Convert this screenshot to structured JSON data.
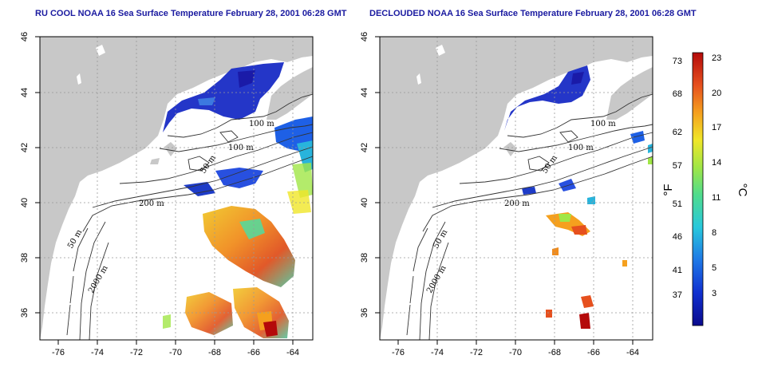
{
  "left_panel": {
    "title": "RU COOL NOAA 16 Sea Surface Temperature February 28, 2001 06:28 GMT",
    "contour_labels": [
      "100 m",
      "100 m",
      "50 m",
      "200 m",
      "50 m",
      "2000 m"
    ]
  },
  "right_panel": {
    "title": "DECLOUDED NOAA 16 Sea Surface Temperature February 28, 2001 06:28 GMT",
    "contour_labels": [
      "100 m",
      "100 m",
      "50 m",
      "200 m",
      "50 m",
      "2000 m"
    ]
  },
  "map_axes": {
    "x_ticks": [
      "-76",
      "-74",
      "-72",
      "-70",
      "-68",
      "-66",
      "-64"
    ],
    "y_ticks": [
      "46",
      "44",
      "42",
      "40",
      "38",
      "36"
    ],
    "xlim": [
      -77,
      -63
    ],
    "ylim": [
      35,
      46
    ]
  },
  "colorbar": {
    "f_label": "°F",
    "c_label": "°C",
    "f_ticks": [
      "73",
      "68",
      "62",
      "57",
      "51",
      "46",
      "41",
      "37"
    ],
    "c_ticks": [
      "23",
      "20",
      "17",
      "14",
      "11",
      "8",
      "5",
      "3"
    ],
    "colors": [
      "#0a0a8c",
      "#1030d0",
      "#1e78e6",
      "#28c8dc",
      "#50dc8c",
      "#a0e646",
      "#f0e628",
      "#f5a01e",
      "#e6501e",
      "#b40a0a"
    ]
  },
  "colors": {
    "land": "#c8c8c8",
    "ocean": "#ffffff",
    "title": "#1a1aa0"
  }
}
